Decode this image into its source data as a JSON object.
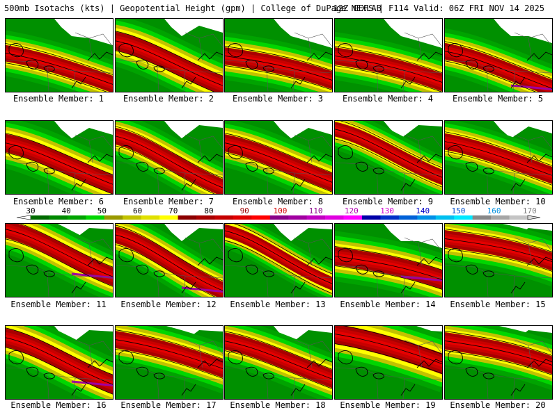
{
  "header": {
    "title_left": "500mb Isotachs (kts) | Geopotential Height (gpm) | College of DuPage NEXLAB",
    "title_right": "12Z GEFS | F114 Valid: 06Z FRI NOV 14 2025"
  },
  "colorbar": {
    "ticks": [
      "30",
      "40",
      "50",
      "60",
      "70",
      "80",
      "90",
      "100",
      "110",
      "120",
      "130",
      "140",
      "150",
      "160",
      "170"
    ],
    "tick_colors": [
      "#000000",
      "#000000",
      "#000000",
      "#000000",
      "#000000",
      "#000000",
      "#9b0000",
      "#d20000",
      "#8a008a",
      "#b000b0",
      "#d000d0",
      "#0000c8",
      "#0050d0",
      "#0090e0",
      "#808080"
    ],
    "colors": [
      "#006a00",
      "#008800",
      "#00a300",
      "#00d600",
      "#999900",
      "#c2c200",
      "#e0e000",
      "#ffff00",
      "#8b0000",
      "#a80000",
      "#c50000",
      "#e00000",
      "#ff0000",
      "#880088",
      "#a000a0",
      "#c000c0",
      "#e000e0",
      "#ff00ff",
      "#0000a8",
      "#0030c8",
      "#0060d8",
      "#0090e8",
      "#00bff0",
      "#00e8ff",
      "#888888",
      "#a6a6a6",
      "#c4c4c4"
    ]
  },
  "panels": [
    {
      "label": "Ensemble Member: 1"
    },
    {
      "label": "Ensemble Member: 2"
    },
    {
      "label": "Ensemble Member: 3"
    },
    {
      "label": "Ensemble Member: 4"
    },
    {
      "label": "Ensemble Member: 5"
    },
    {
      "label": "Ensemble Member: 6"
    },
    {
      "label": "Ensemble Member: 7"
    },
    {
      "label": "Ensemble Member: 8"
    },
    {
      "label": "Ensemble Member: 9"
    },
    {
      "label": "Ensemble Member: 10"
    },
    {
      "label": "Ensemble Member: 11"
    },
    {
      "label": "Ensemble Member: 12"
    },
    {
      "label": "Ensemble Member: 13"
    },
    {
      "label": "Ensemble Member: 14"
    },
    {
      "label": "Ensemble Member: 15"
    },
    {
      "label": "Ensemble Member: 16"
    },
    {
      "label": "Ensemble Member: 17"
    },
    {
      "label": "Ensemble Member: 18"
    },
    {
      "label": "Ensemble Member: 19"
    },
    {
      "label": "Ensemble Member: 20"
    }
  ]
}
